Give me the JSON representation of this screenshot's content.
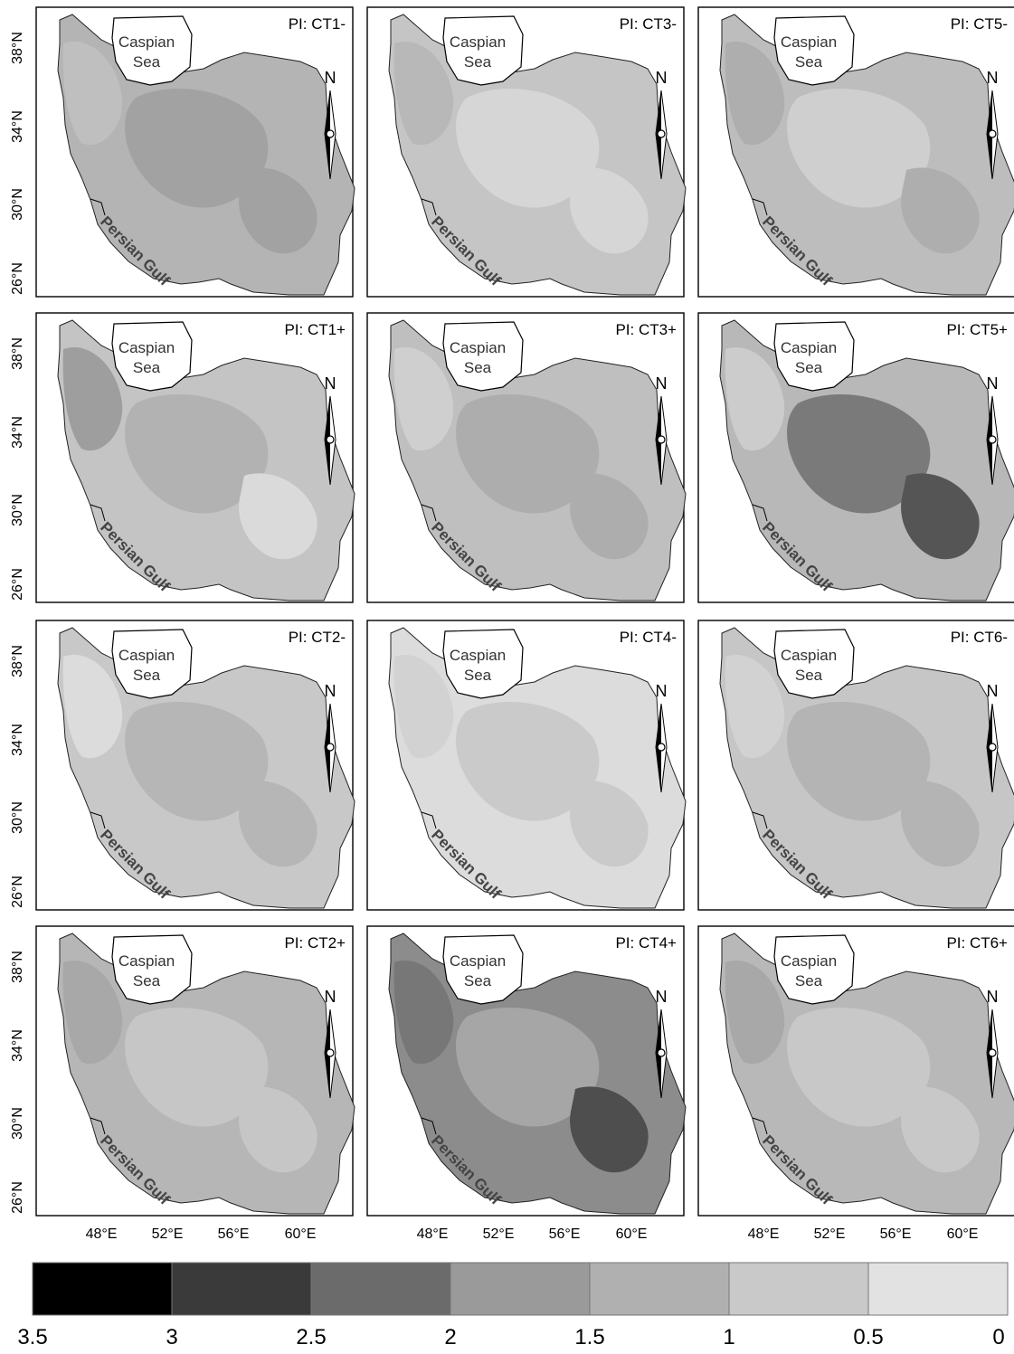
{
  "labels": {
    "sea_line1": "Caspian",
    "sea_line2": "Sea",
    "gulf": "Persian Gulf",
    "north": "N"
  },
  "lat_ticks": [
    "38°N",
    "34°N",
    "30°N",
    "26°N"
  ],
  "lon_ticks": [
    "48°E",
    "52°E",
    "56°E",
    "60°E"
  ],
  "panels": [
    {
      "title": "PI: CT1-",
      "base": "#b4b4b4",
      "patches": [
        {
          "color": "#a2a2a2"
        },
        {
          "color": "#a2a2a2"
        },
        {
          "color": "#bfbfbf"
        }
      ]
    },
    {
      "title": "PI: CT3-",
      "base": "#c5c5c5",
      "patches": [
        {
          "color": "#d6d6d6"
        },
        {
          "color": "#d6d6d6"
        },
        {
          "color": "#b8b8b8"
        }
      ]
    },
    {
      "title": "PI: CT5-",
      "base": "#bdbdbd",
      "patches": [
        {
          "color": "#cfcfcf"
        },
        {
          "color": "#aeaeae"
        },
        {
          "color": "#aeaeae"
        }
      ]
    },
    {
      "title": "PI: CT1+",
      "base": "#c4c4c4",
      "patches": [
        {
          "color": "#b2b2b2"
        },
        {
          "color": "#dadada"
        },
        {
          "color": "#9e9e9e"
        }
      ]
    },
    {
      "title": "PI: CT3+",
      "base": "#bfbfbf",
      "patches": [
        {
          "color": "#adadad"
        },
        {
          "color": "#adadad"
        },
        {
          "color": "#cfcfcf"
        }
      ]
    },
    {
      "title": "PI: CT5+",
      "base": "#b8b8b8",
      "patches": [
        {
          "color": "#7a7a7a"
        },
        {
          "color": "#555555"
        },
        {
          "color": "#cccccc"
        }
      ]
    },
    {
      "title": "PI: CT2-",
      "base": "#c8c8c8",
      "patches": [
        {
          "color": "#b6b6b6"
        },
        {
          "color": "#b6b6b6"
        },
        {
          "color": "#dcdcdc"
        }
      ]
    },
    {
      "title": "PI: CT4-",
      "base": "#dcdcdc",
      "patches": [
        {
          "color": "#cacaca"
        },
        {
          "color": "#cacaca"
        },
        {
          "color": "#d2d2d2"
        }
      ]
    },
    {
      "title": "PI: CT6-",
      "base": "#c6c6c6",
      "patches": [
        {
          "color": "#b4b4b4"
        },
        {
          "color": "#b4b4b4"
        },
        {
          "color": "#d2d2d2"
        }
      ]
    },
    {
      "title": "PI: CT2+",
      "base": "#b6b6b6",
      "patches": [
        {
          "color": "#c6c6c6"
        },
        {
          "color": "#c6c6c6"
        },
        {
          "color": "#a8a8a8"
        }
      ]
    },
    {
      "title": "PI: CT4+",
      "base": "#8c8c8c",
      "patches": [
        {
          "color": "#a6a6a6"
        },
        {
          "color": "#4e4e4e"
        },
        {
          "color": "#777777"
        }
      ]
    },
    {
      "title": "PI: CT6+",
      "base": "#b8b8b8",
      "patches": [
        {
          "color": "#c8c8c8"
        },
        {
          "color": "#c8c8c8"
        },
        {
          "color": "#a8a8a8"
        }
      ]
    }
  ],
  "legend": {
    "colors": [
      "#000000",
      "#3a3a3a",
      "#6b6b6b",
      "#9a9a9a",
      "#b0b0b0",
      "#c9c9c9",
      "#e2e2e2"
    ],
    "labels": [
      "3.5",
      "3",
      "2.5",
      "2",
      "1.5",
      "1",
      "0.5",
      "0"
    ]
  }
}
